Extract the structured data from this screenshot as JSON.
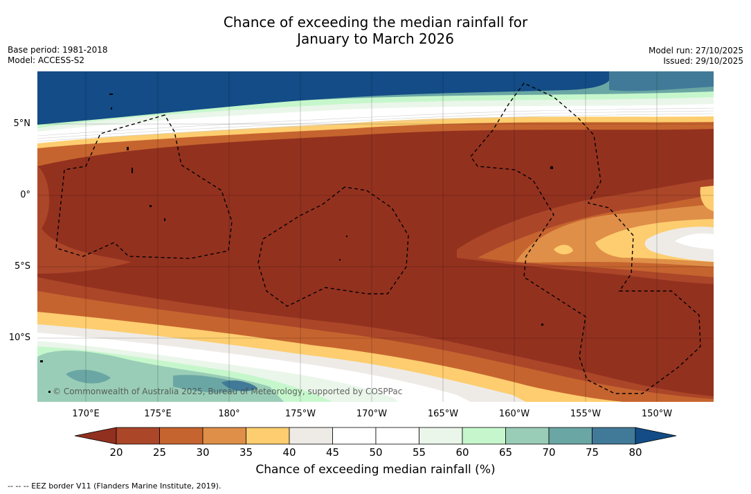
{
  "header": {
    "title_line1": "Chance of exceeding the median rainfall for",
    "title_line2": "January to March 2026",
    "base_period": "Base period: 1981-2018",
    "model": "Model: ACCESS-S2",
    "model_run": "Model run: 27/10/2025",
    "issued": "Issued: 29/10/2025"
  },
  "map": {
    "credit": "© Commonwealth of Australia 2025, Bureau of Meteorology, supported by COSPPac",
    "lon_labels": [
      "170°E",
      "175°E",
      "180°",
      "175°W",
      "170°W",
      "165°W",
      "160°W",
      "155°W",
      "150°W"
    ],
    "lat_labels": [
      "5°N",
      "0°",
      "5°S",
      "10°S"
    ]
  },
  "colorbar": {
    "ticks": [
      "20",
      "25",
      "30",
      "35",
      "40",
      "45",
      "50",
      "55",
      "60",
      "65",
      "70",
      "75",
      "80"
    ],
    "colors": [
      "#ab4629",
      "#c6642f",
      "#df8f48",
      "#fdcd6f",
      "#eeebe7",
      "#ffffff",
      "#ffffff",
      "#eaf6ea",
      "#c6f7cc",
      "#9acdb7",
      "#6aa7a4",
      "#417a98"
    ],
    "under_color": "#91301f",
    "over_color": "#134c86",
    "title": "Chance of exceeding median rainfall (%)"
  },
  "footnote": "--  --  -- EEZ border V11 (Flanders Marine Institute, 2019)."
}
